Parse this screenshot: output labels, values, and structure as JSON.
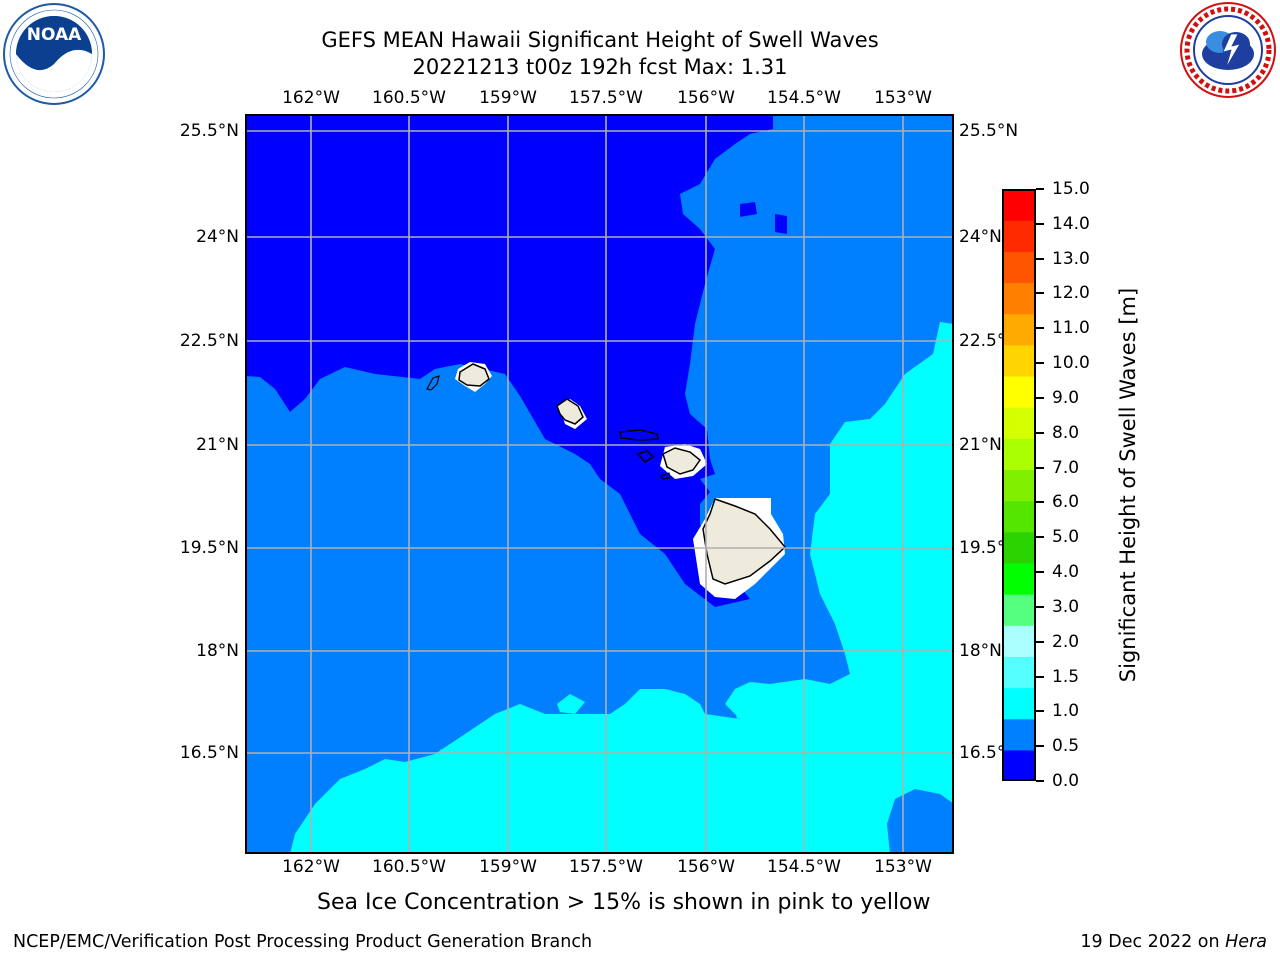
{
  "header": {
    "title_line1": "GEFS MEAN Hawaii Significant Height of Swell Waves",
    "title_line2": "20221213 t00z 192h fcst   Max: 1.31"
  },
  "logos": {
    "left": {
      "name": "noaa-logo",
      "text": "NOAA",
      "ring_text": "NATIONAL OCEANIC AND ATMOSPHERIC ADMINISTRATION · U.S. DEPARTMENT OF COMMERCE"
    },
    "right": {
      "name": "nws-logo",
      "ring_text": "NATIONAL WEATHER SERVICE"
    }
  },
  "map": {
    "lon_ticks": [
      "162°W",
      "160.5°W",
      "159°W",
      "157.5°W",
      "156°W",
      "154.5°W",
      "153°W"
    ],
    "lat_ticks": [
      "25.5°N",
      "24°N",
      "22.5°N",
      "21°N",
      "19.5°N",
      "18°N",
      "16.5°N"
    ],
    "colors": {
      "band_0_0_5": "#0000ff",
      "band_0_5_1_0": "#0080ff",
      "band_1_0_1_5": "#00ffff",
      "land": "#efebdc",
      "grid": "#b0b0b0"
    }
  },
  "colorbar": {
    "label": "Significant Height of Swell Waves [m]",
    "ticks": [
      "15.0",
      "14.0",
      "13.0",
      "12.0",
      "11.0",
      "10.0",
      "9.0",
      "8.0",
      "7.0",
      "6.0",
      "5.0",
      "4.0",
      "3.0",
      "2.0",
      "1.5",
      "1.0",
      "0.5",
      "0.0"
    ],
    "colors": [
      "#0000ff",
      "#0080ff",
      "#00ffff",
      "#55ffff",
      "#aaffff",
      "#55ff7f",
      "#00ff00",
      "#2ad400",
      "#55e600",
      "#80f000",
      "#aaff00",
      "#d4ff00",
      "#ffff00",
      "#ffd400",
      "#ffaa00",
      "#ff8000",
      "#ff5500",
      "#ff2a00",
      "#ff0000"
    ]
  },
  "footnote": "Sea Ice Concentration > 15% is shown in pink to yellow",
  "footer": {
    "left": "NCEP/EMC/Verification Post Processing Product Generation Branch",
    "right_date": "19 Dec 2022 on ",
    "right_host": "Hera"
  }
}
